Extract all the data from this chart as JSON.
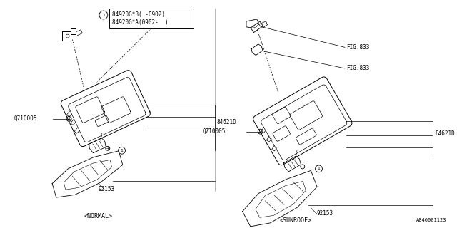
{
  "bg_color": "#ffffff",
  "line_color": "#000000",
  "part_labels": {
    "84920GB": "84920G*B( -0902)",
    "84920GA": "84920G*A(0902-  )",
    "84621D": "84621D",
    "Q710005": "Q710005",
    "92153": "92153",
    "FIG833": "FIG.833",
    "A846001123": "A846001123"
  },
  "section_labels": {
    "normal": "<NORMAL>",
    "sunroof": "<SUNROOF>"
  }
}
